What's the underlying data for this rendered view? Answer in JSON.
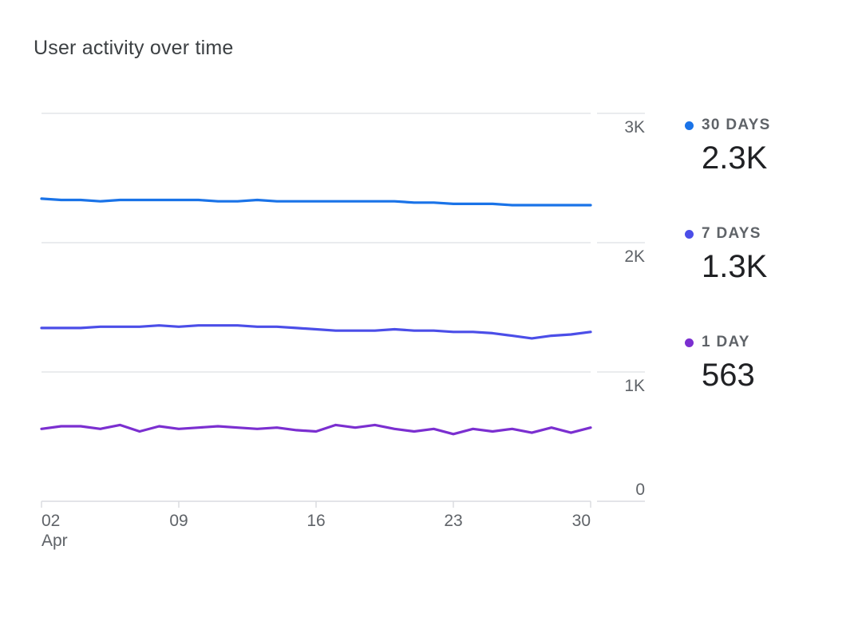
{
  "card": {
    "title": "User activity over time"
  },
  "legend": [
    {
      "label": "30 DAYS",
      "value": "2.3K",
      "color": "#1a73e8"
    },
    {
      "label": "7 DAYS",
      "value": "1.3K",
      "color": "#4b4ee8"
    },
    {
      "label": "1 DAY",
      "value": "563",
      "color": "#7b2fd0"
    }
  ],
  "chart_data": {
    "type": "line",
    "title": "User activity over time",
    "xlabel": "",
    "ylabel": "",
    "ylim": [
      0,
      3000
    ],
    "y_ticks": [
      {
        "value": 0,
        "label": "0"
      },
      {
        "value": 1000,
        "label": "1K"
      },
      {
        "value": 2000,
        "label": "2K"
      },
      {
        "value": 3000,
        "label": "3K"
      }
    ],
    "x_ticks": [
      {
        "day": 2,
        "label": "02",
        "sublabel": "Apr"
      },
      {
        "day": 9,
        "label": "09",
        "sublabel": ""
      },
      {
        "day": 16,
        "label": "16",
        "sublabel": ""
      },
      {
        "day": 23,
        "label": "23",
        "sublabel": ""
      },
      {
        "day": 30,
        "label": "30",
        "sublabel": ""
      }
    ],
    "x": [
      2,
      3,
      4,
      5,
      6,
      7,
      8,
      9,
      10,
      11,
      12,
      13,
      14,
      15,
      16,
      17,
      18,
      19,
      20,
      21,
      22,
      23,
      24,
      25,
      26,
      27,
      28,
      29,
      30
    ],
    "y_axis_side": "right",
    "grid": true,
    "legend_position": "right",
    "series": [
      {
        "name": "30 DAYS",
        "color": "#1a73e8",
        "values": [
          2340,
          2330,
          2330,
          2320,
          2330,
          2330,
          2330,
          2330,
          2330,
          2320,
          2320,
          2330,
          2320,
          2320,
          2320,
          2320,
          2320,
          2320,
          2320,
          2310,
          2310,
          2300,
          2300,
          2300,
          2290,
          2290,
          2290,
          2290,
          2290
        ]
      },
      {
        "name": "7 DAYS",
        "color": "#4b4ee8",
        "values": [
          1340,
          1340,
          1340,
          1350,
          1350,
          1350,
          1360,
          1350,
          1360,
          1360,
          1360,
          1350,
          1350,
          1340,
          1330,
          1320,
          1320,
          1320,
          1330,
          1320,
          1320,
          1310,
          1310,
          1300,
          1280,
          1260,
          1280,
          1290,
          1310
        ]
      },
      {
        "name": "1 DAY",
        "color": "#7b2fd0",
        "values": [
          560,
          580,
          580,
          560,
          590,
          540,
          580,
          560,
          570,
          580,
          570,
          560,
          570,
          550,
          540,
          590,
          570,
          590,
          560,
          540,
          560,
          520,
          560,
          540,
          560,
          530,
          570,
          530,
          570
        ]
      }
    ]
  }
}
